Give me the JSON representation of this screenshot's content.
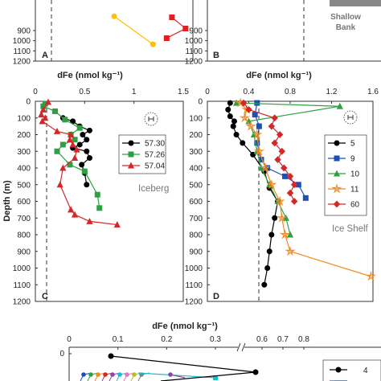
{
  "chart_data": [
    {
      "panel": "A",
      "type": "line",
      "xlabel": "dFe (nmol kg⁻¹)",
      "ylim": [
        1200,
        0
      ],
      "yticks": [
        900,
        1000,
        1100,
        1200
      ],
      "series": [
        {
          "color": "#FFC000",
          "marker": "circle",
          "points": [
            {
              "x": 0.75,
              "y": 760
            },
            {
              "x": 1.12,
              "y": 1035
            }
          ]
        },
        {
          "color": "#E02020",
          "marker": "square",
          "points": [
            {
              "x": 1.3,
              "y": 770
            },
            {
              "x": 1.43,
              "y": 880
            },
            {
              "x": 1.25,
              "y": 975
            }
          ]
        }
      ],
      "dashed_ref_x": 0.12
    },
    {
      "panel": "B",
      "type": "line",
      "ylim": [
        1200,
        0
      ],
      "yticks": [
        900,
        1000,
        1100,
        1200
      ],
      "annotation": "Shallow Bank",
      "dashed_ref_x": 0.8
    },
    {
      "panel": "C",
      "type": "line",
      "xlabel": "dFe (nmol kg⁻¹)",
      "ylabel": "Depth (m)",
      "xlim": [
        0,
        1.5
      ],
      "xticks": [
        "0",
        "0.5",
        "1",
        "1.5"
      ],
      "ylim": [
        1200,
        0
      ],
      "yticks": [
        "0",
        "100",
        "200",
        "300",
        "400",
        "500",
        "600",
        "700",
        "800",
        "900",
        "1000",
        "1100",
        "1200"
      ],
      "annotation": "Iceberg",
      "dashed_ref_x": 0.22,
      "series": [
        {
          "name": "57.30",
          "color": "#000000",
          "marker": "circle",
          "points": [
            {
              "x": 0.28,
              "y": 100
            },
            {
              "x": 0.38,
              "y": 120
            },
            {
              "x": 0.45,
              "y": 150
            },
            {
              "x": 0.55,
              "y": 175
            },
            {
              "x": 0.48,
              "y": 200
            },
            {
              "x": 0.52,
              "y": 230
            },
            {
              "x": 0.45,
              "y": 260
            },
            {
              "x": 0.38,
              "y": 280
            },
            {
              "x": 0.52,
              "y": 300
            },
            {
              "x": 0.55,
              "y": 340
            },
            {
              "x": 0.47,
              "y": 380
            },
            {
              "x": 0.5,
              "y": 430
            },
            {
              "x": 0.52,
              "y": 500
            }
          ]
        },
        {
          "name": "57.26",
          "color": "#2EA043",
          "marker": "square",
          "points": [
            {
              "x": 0.1,
              "y": 15
            },
            {
              "x": 0.08,
              "y": 30
            },
            {
              "x": 0.2,
              "y": 60
            },
            {
              "x": 0.3,
              "y": 110
            },
            {
              "x": 0.45,
              "y": 160
            },
            {
              "x": 0.36,
              "y": 200
            },
            {
              "x": 0.4,
              "y": 230
            },
            {
              "x": 0.28,
              "y": 260
            },
            {
              "x": 0.22,
              "y": 300
            },
            {
              "x": 0.35,
              "y": 380
            },
            {
              "x": 0.5,
              "y": 420
            },
            {
              "x": 0.63,
              "y": 560
            },
            {
              "x": 0.65,
              "y": 640
            }
          ]
        },
        {
          "name": "57.04",
          "color": "#D62728",
          "marker": "triangle",
          "points": [
            {
              "x": 0.13,
              "y": 5
            },
            {
              "x": 0.08,
              "y": 50
            },
            {
              "x": 0.06,
              "y": 80
            },
            {
              "x": 0.1,
              "y": 100
            },
            {
              "x": 0.07,
              "y": 120
            },
            {
              "x": 0.22,
              "y": 180
            },
            {
              "x": 0.36,
              "y": 200
            },
            {
              "x": 0.35,
              "y": 230
            },
            {
              "x": 0.38,
              "y": 260
            },
            {
              "x": 0.42,
              "y": 290
            },
            {
              "x": 0.4,
              "y": 340
            },
            {
              "x": 0.28,
              "y": 400
            },
            {
              "x": 0.25,
              "y": 500
            },
            {
              "x": 0.36,
              "y": 650
            },
            {
              "x": 0.4,
              "y": 680
            },
            {
              "x": 0.55,
              "y": 720
            },
            {
              "x": 0.83,
              "y": 740
            }
          ]
        }
      ]
    },
    {
      "panel": "D",
      "type": "line",
      "xlabel": "dFe (nmol kg⁻¹)",
      "xlim": [
        0,
        1.6
      ],
      "xticks": [
        "0",
        "0.4",
        "0.8",
        "1.2",
        "1.6"
      ],
      "ylim": [
        1200,
        0
      ],
      "yticks": [
        "0",
        "100",
        "200",
        "300",
        "400",
        "500",
        "600",
        "700",
        "800",
        "900",
        "1000",
        "1100",
        "1200"
      ],
      "annotation": "Ice Shelf",
      "dashed_ref_x": 0.3,
      "series": [
        {
          "name": "5",
          "color": "#000000",
          "marker": "circle",
          "points": [
            {
              "x": 0.22,
              "y": 10
            },
            {
              "x": 0.2,
              "y": 50
            },
            {
              "x": 0.22,
              "y": 90
            },
            {
              "x": 0.26,
              "y": 120
            },
            {
              "x": 0.25,
              "y": 150
            },
            {
              "x": 0.28,
              "y": 200
            },
            {
              "x": 0.34,
              "y": 250
            },
            {
              "x": 0.44,
              "y": 320
            },
            {
              "x": 0.55,
              "y": 420
            },
            {
              "x": 0.6,
              "y": 520
            },
            {
              "x": 0.68,
              "y": 600
            },
            {
              "x": 0.65,
              "y": 700
            },
            {
              "x": 0.62,
              "y": 800
            },
            {
              "x": 0.6,
              "y": 900
            },
            {
              "x": 0.58,
              "y": 1000
            },
            {
              "x": 0.55,
              "y": 1100
            }
          ]
        },
        {
          "name": "9",
          "color": "#1F4FB5",
          "marker": "square",
          "points": [
            {
              "x": 0.48,
              "y": 10
            },
            {
              "x": 0.46,
              "y": 80
            },
            {
              "x": 0.5,
              "y": 150
            },
            {
              "x": 0.48,
              "y": 250
            },
            {
              "x": 0.52,
              "y": 350
            },
            {
              "x": 0.58,
              "y": 400
            },
            {
              "x": 0.75,
              "y": 450
            },
            {
              "x": 0.88,
              "y": 500
            },
            {
              "x": 0.95,
              "y": 580
            }
          ]
        },
        {
          "name": "10",
          "color": "#2EA043",
          "marker": "triangle",
          "points": [
            {
              "x": 0.28,
              "y": 10
            },
            {
              "x": 1.28,
              "y": 30
            },
            {
              "x": 0.4,
              "y": 120
            },
            {
              "x": 0.45,
              "y": 200
            },
            {
              "x": 0.48,
              "y": 300
            },
            {
              "x": 0.52,
              "y": 400
            },
            {
              "x": 0.6,
              "y": 500
            },
            {
              "x": 0.68,
              "y": 600
            },
            {
              "x": 0.76,
              "y": 700
            },
            {
              "x": 0.8,
              "y": 800
            }
          ]
        },
        {
          "name": "11",
          "color": "#F08A24",
          "marker": "star",
          "points": [
            {
              "x": 0.32,
              "y": 10
            },
            {
              "x": 0.38,
              "y": 50
            },
            {
              "x": 0.36,
              "y": 100
            },
            {
              "x": 0.42,
              "y": 150
            },
            {
              "x": 0.48,
              "y": 200
            },
            {
              "x": 0.5,
              "y": 300
            },
            {
              "x": 0.56,
              "y": 400
            },
            {
              "x": 0.62,
              "y": 500
            },
            {
              "x": 0.7,
              "y": 600
            },
            {
              "x": 0.72,
              "y": 700
            },
            {
              "x": 0.75,
              "y": 800
            },
            {
              "x": 0.8,
              "y": 900
            },
            {
              "x": 1.58,
              "y": 1050
            }
          ]
        },
        {
          "name": "60",
          "color": "#D62728",
          "marker": "diamond",
          "points": [
            {
              "x": 0.35,
              "y": 10
            },
            {
              "x": 0.4,
              "y": 50
            },
            {
              "x": 0.65,
              "y": 100
            },
            {
              "x": 0.62,
              "y": 150
            },
            {
              "x": 0.7,
              "y": 200
            },
            {
              "x": 0.65,
              "y": 250
            },
            {
              "x": 0.72,
              "y": 300
            },
            {
              "x": 0.68,
              "y": 350
            },
            {
              "x": 0.74,
              "y": 400
            },
            {
              "x": 0.8,
              "y": 450
            },
            {
              "x": 0.84,
              "y": 500
            },
            {
              "x": 0.8,
              "y": 550
            },
            {
              "x": 0.84,
              "y": 600
            }
          ]
        }
      ]
    },
    {
      "panel": "E",
      "type": "line",
      "xlabel": "dFe (nmol kg⁻¹)",
      "xticks": [
        "0",
        "0.1",
        "0.2",
        "0.3",
        "0.6",
        "0.7",
        "0.8"
      ],
      "yticks": [
        "0"
      ],
      "legend_visible": [
        "4"
      ],
      "series": [
        {
          "name": "4",
          "color": "#000000",
          "marker": "circle",
          "points": [
            {
              "x": 0.13,
              "y": 0
            },
            {
              "x": 0.57,
              "y": 25
            },
            {
              "x": 0.27,
              "y": 35
            }
          ]
        }
      ]
    }
  ],
  "labels": {
    "top_xlabel_c": "dFe (nmol kg⁻¹)",
    "top_xlabel_d": "dFe (nmol kg⁻¹)",
    "top_xlabel_e": "dFe (nmol kg⁻¹)",
    "ylabel": "Depth (m)",
    "panel_a": "A",
    "panel_b": "B",
    "panel_c": "C",
    "panel_d": "D",
    "annot_shallow_1": "Shallow",
    "annot_shallow_2": "Bank",
    "annot_iceberg": "Iceberg",
    "annot_iceshelf": "Ice Shelf"
  }
}
